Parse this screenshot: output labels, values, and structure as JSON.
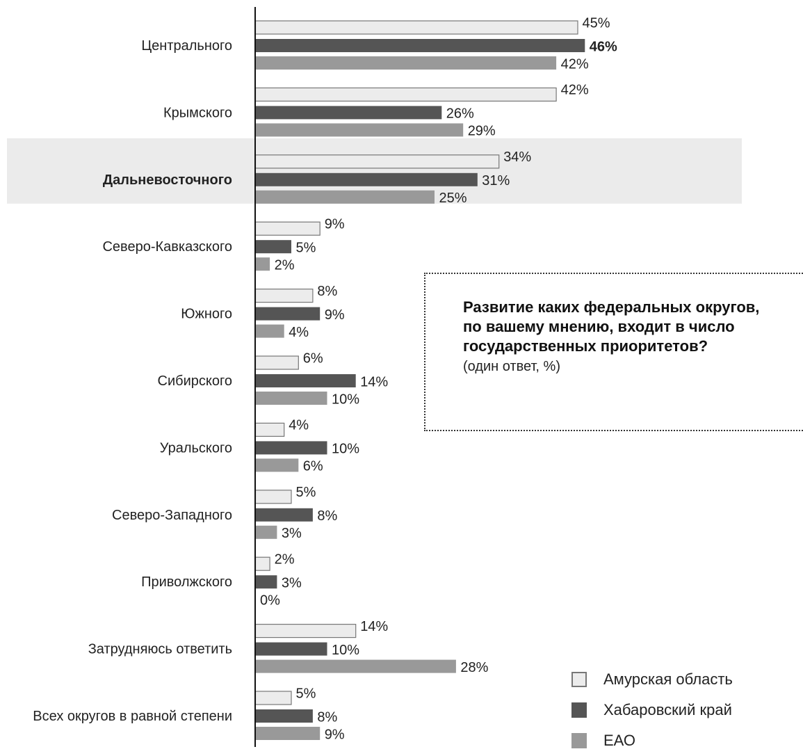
{
  "question": {
    "title": "Развитие каких федеральных округов, по вашему мнению, входит в число государственных приоритетов?",
    "subtitle": "(один ответ, %)"
  },
  "legend": [
    {
      "name": "Амурская область",
      "color": "#ececec",
      "border": "#777777"
    },
    {
      "name": "Хабаровский край",
      "color": "#555555",
      "border": "#555555"
    },
    {
      "name": "ЕАО",
      "color": "#999999",
      "border": "#999999"
    }
  ],
  "chart_data": {
    "type": "bar",
    "orientation": "horizontal",
    "categories": [
      "Центрального",
      "Крымского",
      "Дальневосточного",
      "Северо-Кавказского",
      "Южного",
      "Сибирского",
      "Уральского",
      "Северо-Западного",
      "Приволжского",
      "Затрудняюсь ответить",
      "Всех округов в равной степени"
    ],
    "highlighted_category": "Дальневосточного",
    "series": [
      {
        "name": "Амурская область",
        "values": [
          45,
          42,
          34,
          9,
          8,
          6,
          4,
          5,
          2,
          14,
          5
        ]
      },
      {
        "name": "Хабаровский край",
        "values": [
          46,
          26,
          31,
          5,
          9,
          14,
          10,
          8,
          3,
          10,
          8
        ]
      },
      {
        "name": "ЕАО",
        "values": [
          42,
          29,
          25,
          2,
          4,
          10,
          6,
          3,
          0,
          28,
          9
        ]
      }
    ],
    "value_labels": [
      [
        "45%",
        "46%",
        "42%"
      ],
      [
        "42%",
        "26%",
        "29%"
      ],
      [
        "34%",
        "31%",
        "25%"
      ],
      [
        "9%",
        "5%",
        "2%"
      ],
      [
        "8%",
        "9%",
        "4%"
      ],
      [
        "6%",
        "14%",
        "10%"
      ],
      [
        "4%",
        "10%",
        "6%"
      ],
      [
        "5%",
        "8%",
        "3%"
      ],
      [
        "2%",
        "3%",
        "0%"
      ],
      [
        "14%",
        "10%",
        "28%"
      ],
      [
        "5%",
        "8%",
        "9%"
      ]
    ],
    "bold_value": {
      "category": "Центрального",
      "series": "Хабаровский край"
    },
    "xlim": [
      0,
      46
    ],
    "legend_position": "bottom-right",
    "grid": false
  }
}
